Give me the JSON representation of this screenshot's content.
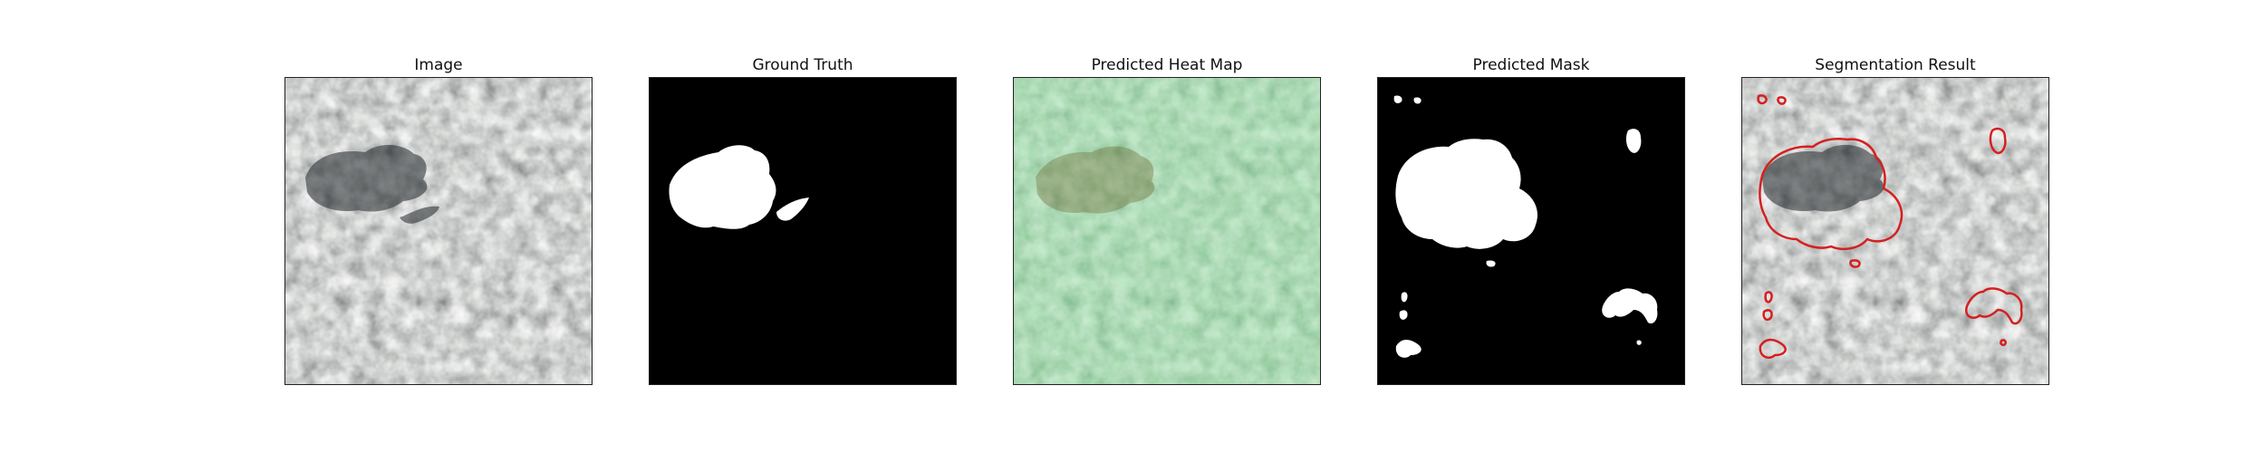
{
  "figure": {
    "panels": [
      {
        "title": "Image"
      },
      {
        "title": "Ground Truth"
      },
      {
        "title": "Predicted Heat Map"
      },
      {
        "title": "Predicted Mask"
      },
      {
        "title": "Segmentation Result"
      }
    ]
  },
  "colors": {
    "background": "#ffffff",
    "frame": "#222222",
    "heatmap_tint": "#7bd38f",
    "mask_fg": "#ffffff",
    "mask_bg": "#000000",
    "contour": "#d61f1f"
  }
}
